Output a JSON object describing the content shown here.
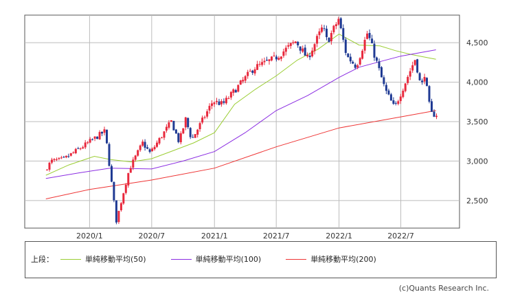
{
  "chart_data": {
    "type": "candlestick",
    "x_ticks": [
      "2020/1",
      "2020/7",
      "2021/1",
      "2021/7",
      "2022/1",
      "2022/7"
    ],
    "y_ticks": [
      "2,500",
      "3,000",
      "3,500",
      "4,000",
      "4,500"
    ],
    "ylim": [
      2150,
      4850
    ],
    "grid": true,
    "up_color": "#e8283c",
    "down_color": "#1f3a93",
    "price_path": [
      [
        "2019-08-26",
        2880
      ],
      [
        "2019-09-15",
        3000
      ],
      [
        "2019-10-20",
        3020
      ],
      [
        "2019-11-30",
        3140
      ],
      [
        "2019-12-31",
        3230
      ],
      [
        "2020-02-19",
        3380
      ],
      [
        "2020-03-23",
        2240
      ],
      [
        "2020-04-30",
        2900
      ],
      [
        "2020-06-08",
        3230
      ],
      [
        "2020-06-30",
        3100
      ],
      [
        "2020-08-31",
        3500
      ],
      [
        "2020-09-23",
        3240
      ],
      [
        "2020-10-12",
        3530
      ],
      [
        "2020-10-30",
        3270
      ],
      [
        "2020-12-31",
        3760
      ],
      [
        "2021-01-29",
        3720
      ],
      [
        "2021-04-30",
        4180
      ],
      [
        "2021-06-30",
        4300
      ],
      [
        "2021-08-31",
        4520
      ],
      [
        "2021-10-04",
        4300
      ],
      [
        "2021-11-18",
        4700
      ],
      [
        "2021-12-01",
        4510
      ],
      [
        "2022-01-03",
        4800
      ],
      [
        "2022-01-27",
        4330
      ],
      [
        "2022-02-24",
        4200
      ],
      [
        "2022-03-29",
        4630
      ],
      [
        "2022-05-20",
        3900
      ],
      [
        "2022-06-16",
        3670
      ],
      [
        "2022-08-16",
        4300
      ],
      [
        "2022-09-02",
        3920
      ],
      [
        "2022-09-12",
        4110
      ],
      [
        "2022-09-30",
        3600
      ],
      [
        "2022-10-12",
        3590
      ]
    ],
    "series": [
      {
        "name": "単純移動平均(50)",
        "color": "#9acd32",
        "points": [
          [
            "2019-08-26",
            2820
          ],
          [
            "2019-11-01",
            2950
          ],
          [
            "2020-01-15",
            3060
          ],
          [
            "2020-03-01",
            3020
          ],
          [
            "2020-05-01",
            2990
          ],
          [
            "2020-07-01",
            3030
          ],
          [
            "2020-09-01",
            3130
          ],
          [
            "2020-11-01",
            3230
          ],
          [
            "2021-01-01",
            3360
          ],
          [
            "2021-03-01",
            3720
          ],
          [
            "2021-05-01",
            3910
          ],
          [
            "2021-07-01",
            4080
          ],
          [
            "2021-09-01",
            4280
          ],
          [
            "2021-11-01",
            4420
          ],
          [
            "2022-01-01",
            4610
          ],
          [
            "2022-03-01",
            4470
          ],
          [
            "2022-05-01",
            4460
          ],
          [
            "2022-06-15",
            4400
          ],
          [
            "2022-08-01",
            4350
          ],
          [
            "2022-10-12",
            4290
          ]
        ]
      },
      {
        "name": "単純移動平均(100)",
        "color": "#8a2be2",
        "points": [
          [
            "2019-08-26",
            2780
          ],
          [
            "2019-12-01",
            2850
          ],
          [
            "2020-03-01",
            2910
          ],
          [
            "2020-07-01",
            2900
          ],
          [
            "2020-10-01",
            3000
          ],
          [
            "2021-01-01",
            3120
          ],
          [
            "2021-04-01",
            3360
          ],
          [
            "2021-07-01",
            3640
          ],
          [
            "2021-10-01",
            3830
          ],
          [
            "2022-01-01",
            4060
          ],
          [
            "2022-03-01",
            4190
          ],
          [
            "2022-05-01",
            4260
          ],
          [
            "2022-07-01",
            4330
          ],
          [
            "2022-10-12",
            4410
          ]
        ]
      },
      {
        "name": "単純移動平均(200)",
        "color": "#ee3333",
        "points": [
          [
            "2019-08-26",
            2520
          ],
          [
            "2020-01-01",
            2640
          ],
          [
            "2020-07-01",
            2760
          ],
          [
            "2021-01-01",
            2910
          ],
          [
            "2021-07-01",
            3180
          ],
          [
            "2022-01-01",
            3420
          ],
          [
            "2022-07-01",
            3560
          ],
          [
            "2022-10-12",
            3640
          ]
        ]
      }
    ]
  },
  "legend": {
    "prefix": "上段：",
    "items": [
      {
        "label": "単純移動平均(50)",
        "color": "#9acd32"
      },
      {
        "label": "単純移動平均(100)",
        "color": "#8a2be2"
      },
      {
        "label": "単純移動平均(200)",
        "color": "#ee3333"
      }
    ]
  },
  "credit": "(c)Quants Research Inc."
}
